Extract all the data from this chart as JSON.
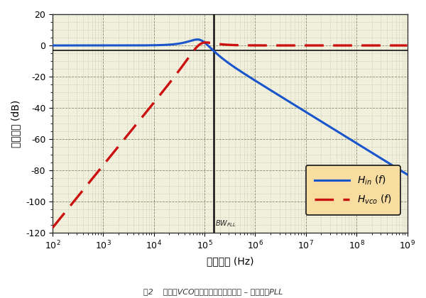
{
  "title": "",
  "xlabel": "频率偏移 (Hz)",
  "ylabel": "频率响应 (dB)",
  "xlim_log": [
    2,
    9
  ],
  "ylim": [
    -120,
    20
  ],
  "yticks": [
    -120,
    -100,
    -80,
    -60,
    -40,
    -20,
    0,
    20
  ],
  "plot_bg_color": "#f0f0dc",
  "bw_pll": 150000.0,
  "hin_color": "#1a55cc",
  "hvco_color": "#cc1111",
  "hin_linewidth": 2.2,
  "hvco_linewidth": 2.4,
  "legend_facecolor": "#f8dda0",
  "legend_edgecolor": "#222222",
  "vline_color": "#111111",
  "hline_color": "#111111",
  "omega_n_factor": 0.55,
  "zeta": 0.45,
  "caption": "图2    输入与VCO相位噪声传递函数示例 – 基于二阶PLL"
}
